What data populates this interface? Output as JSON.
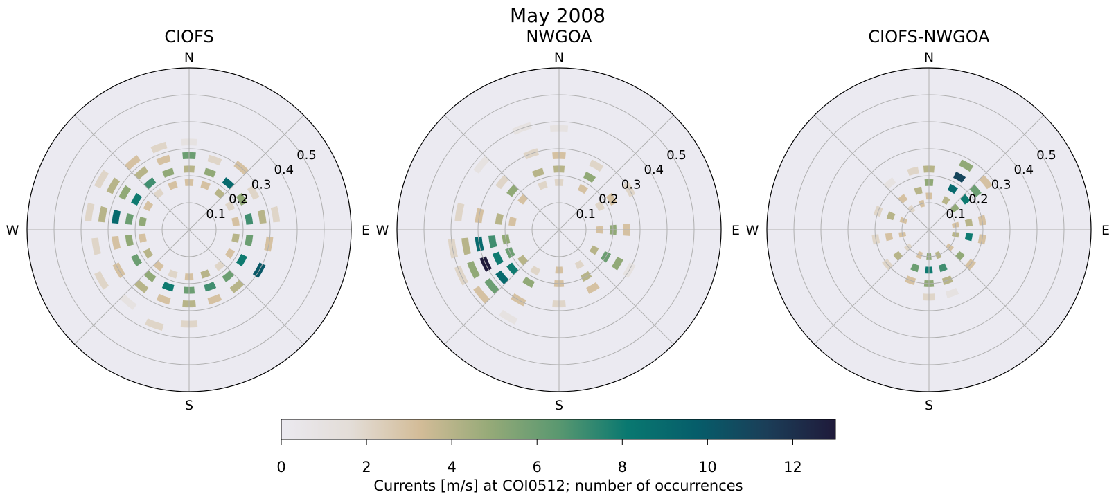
{
  "figure": {
    "suptitle": "May 2008"
  },
  "colorbar": {
    "label": "Currents [m/s] at COI0512; number of occurrences",
    "min": 0,
    "max": 13,
    "ticks": [
      0,
      2,
      4,
      6,
      8,
      10,
      12
    ],
    "colormap_stops": [
      "#ebe9f0",
      "#e3ddd7",
      "#d3bc98",
      "#96aa78",
      "#5a9870",
      "#097870",
      "#065d6a",
      "#1b3e58",
      "#1f1a3a"
    ]
  },
  "chart_data": [
    {
      "type": "heatmap",
      "subtype": "polar-histogram",
      "title": "CIOFS",
      "direction_labels": [
        "N",
        "E",
        "S",
        "W"
      ],
      "radial_ticks": [
        0.1,
        0.2,
        0.3,
        0.4,
        0.5
      ],
      "rlim": [
        0,
        0.6
      ],
      "direction_bins": 36,
      "speed_bin_width": 0.025,
      "cells": [
        {
          "dir": 0,
          "r": 0.175,
          "n": 3
        },
        {
          "dir": 0,
          "r": 0.225,
          "n": 4
        },
        {
          "dir": 0,
          "r": 0.275,
          "n": 6
        },
        {
          "dir": 0,
          "r": 0.325,
          "n": 1
        },
        {
          "dir": 20,
          "r": 0.175,
          "n": 3
        },
        {
          "dir": 20,
          "r": 0.225,
          "n": 5
        },
        {
          "dir": 20,
          "r": 0.275,
          "n": 2
        },
        {
          "dir": 40,
          "r": 0.175,
          "n": 4
        },
        {
          "dir": 40,
          "r": 0.225,
          "n": 9
        },
        {
          "dir": 40,
          "r": 0.3,
          "n": 3
        },
        {
          "dir": 60,
          "r": 0.175,
          "n": 2
        },
        {
          "dir": 60,
          "r": 0.225,
          "n": 5
        },
        {
          "dir": 60,
          "r": 0.275,
          "n": 2
        },
        {
          "dir": 80,
          "r": 0.175,
          "n": 3
        },
        {
          "dir": 80,
          "r": 0.225,
          "n": 7
        },
        {
          "dir": 80,
          "r": 0.275,
          "n": 4
        },
        {
          "dir": 80,
          "r": 0.325,
          "n": 2
        },
        {
          "dir": 100,
          "r": 0.175,
          "n": 4
        },
        {
          "dir": 100,
          "r": 0.225,
          "n": 6
        },
        {
          "dir": 100,
          "r": 0.3,
          "n": 3
        },
        {
          "dir": 120,
          "r": 0.175,
          "n": 3
        },
        {
          "dir": 120,
          "r": 0.225,
          "n": 8
        },
        {
          "dir": 120,
          "r": 0.3,
          "n": 10
        },
        {
          "dir": 140,
          "r": 0.175,
          "n": 2
        },
        {
          "dir": 140,
          "r": 0.225,
          "n": 6
        },
        {
          "dir": 140,
          "r": 0.275,
          "n": 4
        },
        {
          "dir": 160,
          "r": 0.175,
          "n": 4
        },
        {
          "dir": 160,
          "r": 0.225,
          "n": 7
        },
        {
          "dir": 160,
          "r": 0.275,
          "n": 3
        },
        {
          "dir": 180,
          "r": 0.175,
          "n": 3
        },
        {
          "dir": 180,
          "r": 0.225,
          "n": 6
        },
        {
          "dir": 180,
          "r": 0.275,
          "n": 4
        },
        {
          "dir": 180,
          "r": 0.35,
          "n": 2
        },
        {
          "dir": 200,
          "r": 0.175,
          "n": 2
        },
        {
          "dir": 200,
          "r": 0.225,
          "n": 8
        },
        {
          "dir": 200,
          "r": 0.275,
          "n": 3
        },
        {
          "dir": 200,
          "r": 0.375,
          "n": 2
        },
        {
          "dir": 220,
          "r": 0.175,
          "n": 3
        },
        {
          "dir": 220,
          "r": 0.225,
          "n": 5
        },
        {
          "dir": 220,
          "r": 0.275,
          "n": 4
        },
        {
          "dir": 220,
          "r": 0.35,
          "n": 1
        },
        {
          "dir": 240,
          "r": 0.175,
          "n": 4
        },
        {
          "dir": 240,
          "r": 0.225,
          "n": 6
        },
        {
          "dir": 240,
          "r": 0.3,
          "n": 3
        },
        {
          "dir": 240,
          "r": 0.375,
          "n": 2
        },
        {
          "dir": 260,
          "r": 0.175,
          "n": 3
        },
        {
          "dir": 260,
          "r": 0.225,
          "n": 5
        },
        {
          "dir": 260,
          "r": 0.275,
          "n": 3
        },
        {
          "dir": 260,
          "r": 0.35,
          "n": 2
        },
        {
          "dir": 280,
          "r": 0.175,
          "n": 5
        },
        {
          "dir": 280,
          "r": 0.225,
          "n": 6
        },
        {
          "dir": 280,
          "r": 0.275,
          "n": 9
        },
        {
          "dir": 280,
          "r": 0.325,
          "n": 4
        },
        {
          "dir": 280,
          "r": 0.375,
          "n": 2
        },
        {
          "dir": 300,
          "r": 0.175,
          "n": 3
        },
        {
          "dir": 300,
          "r": 0.225,
          "n": 8
        },
        {
          "dir": 300,
          "r": 0.275,
          "n": 5
        },
        {
          "dir": 300,
          "r": 0.325,
          "n": 4
        },
        {
          "dir": 300,
          "r": 0.375,
          "n": 2
        },
        {
          "dir": 320,
          "r": 0.175,
          "n": 2
        },
        {
          "dir": 320,
          "r": 0.225,
          "n": 7
        },
        {
          "dir": 320,
          "r": 0.275,
          "n": 4
        },
        {
          "dir": 320,
          "r": 0.325,
          "n": 3
        },
        {
          "dir": 340,
          "r": 0.175,
          "n": 3
        },
        {
          "dir": 340,
          "r": 0.225,
          "n": 5
        },
        {
          "dir": 340,
          "r": 0.275,
          "n": 3
        },
        {
          "dir": 340,
          "r": 0.325,
          "n": 2
        }
      ]
    },
    {
      "type": "heatmap",
      "subtype": "polar-histogram",
      "title": "NWGOA",
      "direction_labels": [
        "N",
        "E",
        "S",
        "W"
      ],
      "radial_ticks": [
        0.1,
        0.2,
        0.3,
        0.4,
        0.5
      ],
      "rlim": [
        0,
        0.6
      ],
      "direction_bins": 36,
      "speed_bin_width": 0.025,
      "cells": [
        {
          "dir": 0,
          "r": 0.175,
          "n": 2
        },
        {
          "dir": 0,
          "r": 0.225,
          "n": 4
        },
        {
          "dir": 0,
          "r": 0.275,
          "n": 3
        },
        {
          "dir": 0,
          "r": 0.375,
          "n": 1
        },
        {
          "dir": 30,
          "r": 0.175,
          "n": 3
        },
        {
          "dir": 30,
          "r": 0.225,
          "n": 5
        },
        {
          "dir": 30,
          "r": 0.275,
          "n": 2
        },
        {
          "dir": 60,
          "r": 0.175,
          "n": 2
        },
        {
          "dir": 60,
          "r": 0.225,
          "n": 3
        },
        {
          "dir": 60,
          "r": 0.3,
          "n": 2
        },
        {
          "dir": 90,
          "r": 0.15,
          "n": 3
        },
        {
          "dir": 90,
          "r": 0.2,
          "n": 5
        },
        {
          "dir": 90,
          "r": 0.25,
          "n": 3
        },
        {
          "dir": 120,
          "r": 0.15,
          "n": 4
        },
        {
          "dir": 120,
          "r": 0.2,
          "n": 6
        },
        {
          "dir": 120,
          "r": 0.25,
          "n": 5
        },
        {
          "dir": 120,
          "r": 0.3,
          "n": 1
        },
        {
          "dir": 150,
          "r": 0.15,
          "n": 2
        },
        {
          "dir": 150,
          "r": 0.2,
          "n": 4
        },
        {
          "dir": 150,
          "r": 0.25,
          "n": 3
        },
        {
          "dir": 180,
          "r": 0.15,
          "n": 3
        },
        {
          "dir": 180,
          "r": 0.2,
          "n": 3
        },
        {
          "dir": 180,
          "r": 0.275,
          "n": 2
        },
        {
          "dir": 210,
          "r": 0.175,
          "n": 2
        },
        {
          "dir": 210,
          "r": 0.225,
          "n": 5
        },
        {
          "dir": 210,
          "r": 0.3,
          "n": 3
        },
        {
          "dir": 210,
          "r": 0.375,
          "n": 1
        },
        {
          "dir": 230,
          "r": 0.175,
          "n": 4
        },
        {
          "dir": 230,
          "r": 0.225,
          "n": 8
        },
        {
          "dir": 230,
          "r": 0.275,
          "n": 9
        },
        {
          "dir": 230,
          "r": 0.325,
          "n": 6
        },
        {
          "dir": 230,
          "r": 0.375,
          "n": 3
        },
        {
          "dir": 245,
          "r": 0.2,
          "n": 6
        },
        {
          "dir": 245,
          "r": 0.25,
          "n": 8
        },
        {
          "dir": 245,
          "r": 0.3,
          "n": 13
        },
        {
          "dir": 245,
          "r": 0.35,
          "n": 5
        },
        {
          "dir": 245,
          "r": 0.4,
          "n": 2
        },
        {
          "dir": 260,
          "r": 0.2,
          "n": 5
        },
        {
          "dir": 260,
          "r": 0.25,
          "n": 7
        },
        {
          "dir": 260,
          "r": 0.3,
          "n": 9
        },
        {
          "dir": 260,
          "r": 0.35,
          "n": 4
        },
        {
          "dir": 260,
          "r": 0.4,
          "n": 2
        },
        {
          "dir": 280,
          "r": 0.175,
          "n": 3
        },
        {
          "dir": 280,
          "r": 0.225,
          "n": 4
        },
        {
          "dir": 280,
          "r": 0.3,
          "n": 3
        },
        {
          "dir": 280,
          "r": 0.375,
          "n": 2
        },
        {
          "dir": 310,
          "r": 0.175,
          "n": 3
        },
        {
          "dir": 310,
          "r": 0.225,
          "n": 5
        },
        {
          "dir": 310,
          "r": 0.275,
          "n": 2
        },
        {
          "dir": 310,
          "r": 0.375,
          "n": 1
        },
        {
          "dir": 340,
          "r": 0.175,
          "n": 2
        },
        {
          "dir": 340,
          "r": 0.225,
          "n": 4
        },
        {
          "dir": 340,
          "r": 0.3,
          "n": 2
        },
        {
          "dir": 340,
          "r": 0.4,
          "n": 1
        }
      ]
    },
    {
      "type": "heatmap",
      "subtype": "polar-histogram",
      "title": "CIOFS-NWGOA",
      "direction_labels": [
        "N",
        "E",
        "S",
        "W"
      ],
      "radial_ticks": [
        0.1,
        0.2,
        0.3,
        0.4,
        0.5
      ],
      "rlim": [
        0,
        0.6
      ],
      "direction_bins": 36,
      "speed_bin_width": 0.025,
      "cells": [
        {
          "dir": 0,
          "r": 0.125,
          "n": 3
        },
        {
          "dir": 0,
          "r": 0.175,
          "n": 5
        },
        {
          "dir": 0,
          "r": 0.225,
          "n": 4
        },
        {
          "dir": 30,
          "r": 0.125,
          "n": 4
        },
        {
          "dir": 30,
          "r": 0.175,
          "n": 9
        },
        {
          "dir": 30,
          "r": 0.225,
          "n": 11
        },
        {
          "dir": 30,
          "r": 0.275,
          "n": 5
        },
        {
          "dir": 50,
          "r": 0.125,
          "n": 5
        },
        {
          "dir": 50,
          "r": 0.175,
          "n": 8
        },
        {
          "dir": 50,
          "r": 0.225,
          "n": 6
        },
        {
          "dir": 50,
          "r": 0.275,
          "n": 3
        },
        {
          "dir": 80,
          "r": 0.1,
          "n": 3
        },
        {
          "dir": 80,
          "r": 0.15,
          "n": 4
        },
        {
          "dir": 80,
          "r": 0.2,
          "n": 3
        },
        {
          "dir": 100,
          "r": 0.1,
          "n": 4
        },
        {
          "dir": 100,
          "r": 0.15,
          "n": 8
        },
        {
          "dir": 100,
          "r": 0.2,
          "n": 3
        },
        {
          "dir": 130,
          "r": 0.1,
          "n": 3
        },
        {
          "dir": 130,
          "r": 0.15,
          "n": 5
        },
        {
          "dir": 130,
          "r": 0.2,
          "n": 3
        },
        {
          "dir": 160,
          "r": 0.1,
          "n": 4
        },
        {
          "dir": 160,
          "r": 0.15,
          "n": 7
        },
        {
          "dir": 160,
          "r": 0.2,
          "n": 4
        },
        {
          "dir": 160,
          "r": 0.25,
          "n": 1
        },
        {
          "dir": 180,
          "r": 0.1,
          "n": 5
        },
        {
          "dir": 180,
          "r": 0.15,
          "n": 8
        },
        {
          "dir": 180,
          "r": 0.2,
          "n": 5
        },
        {
          "dir": 180,
          "r": 0.25,
          "n": 2
        },
        {
          "dir": 200,
          "r": 0.1,
          "n": 3
        },
        {
          "dir": 200,
          "r": 0.15,
          "n": 6
        },
        {
          "dir": 200,
          "r": 0.2,
          "n": 3
        },
        {
          "dir": 230,
          "r": 0.1,
          "n": 2
        },
        {
          "dir": 230,
          "r": 0.15,
          "n": 4
        },
        {
          "dir": 230,
          "r": 0.2,
          "n": 2
        },
        {
          "dir": 260,
          "r": 0.1,
          "n": 3
        },
        {
          "dir": 260,
          "r": 0.15,
          "n": 3
        },
        {
          "dir": 260,
          "r": 0.2,
          "n": 2
        },
        {
          "dir": 290,
          "r": 0.1,
          "n": 3
        },
        {
          "dir": 290,
          "r": 0.15,
          "n": 4
        },
        {
          "dir": 290,
          "r": 0.2,
          "n": 2
        },
        {
          "dir": 320,
          "r": 0.1,
          "n": 2
        },
        {
          "dir": 320,
          "r": 0.15,
          "n": 3
        },
        {
          "dir": 320,
          "r": 0.225,
          "n": 1
        },
        {
          "dir": 345,
          "r": 0.1,
          "n": 3
        },
        {
          "dir": 345,
          "r": 0.15,
          "n": 4
        },
        {
          "dir": 345,
          "r": 0.225,
          "n": 2
        }
      ]
    }
  ]
}
